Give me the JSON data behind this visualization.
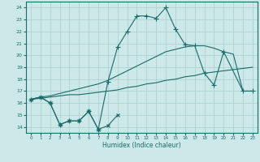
{
  "title": "",
  "xlabel": "Humidex (Indice chaleur)",
  "bg_color": "#cce8e8",
  "line_color": "#1a6b6b",
  "grid_color": "#aacece",
  "xlim": [
    -0.5,
    23.5
  ],
  "ylim": [
    13.5,
    24.5
  ],
  "yticks": [
    14,
    15,
    16,
    17,
    18,
    19,
    20,
    21,
    22,
    23,
    24
  ],
  "xticks": [
    0,
    1,
    2,
    3,
    4,
    5,
    6,
    7,
    8,
    9,
    10,
    11,
    12,
    13,
    14,
    15,
    16,
    17,
    18,
    19,
    20,
    21,
    22,
    23
  ],
  "series": [
    {
      "x": [
        0,
        1,
        2,
        3,
        4,
        5,
        6,
        7,
        8,
        9
      ],
      "y": [
        16.3,
        16.5,
        16.0,
        14.2,
        14.5,
        14.5,
        15.3,
        13.8,
        14.1,
        15.0
      ],
      "marker": "x",
      "markersize": 3,
      "linewidth": 0.8
    },
    {
      "x": [
        0,
        1,
        2,
        3,
        4,
        5,
        6,
        7,
        8,
        9,
        10,
        11,
        12,
        13,
        14,
        15,
        16,
        17,
        18,
        19,
        20,
        22,
        23
      ],
      "y": [
        16.3,
        16.5,
        16.0,
        14.2,
        14.5,
        14.5,
        15.3,
        13.8,
        17.8,
        20.7,
        22.0,
        23.3,
        23.3,
        23.1,
        24.0,
        22.2,
        20.9,
        20.8,
        18.5,
        17.5,
        20.3,
        17.0,
        17.0
      ],
      "marker": "+",
      "markersize": 4,
      "linewidth": 0.8
    },
    {
      "x": [
        0,
        1,
        2,
        3,
        4,
        5,
        6,
        7,
        8,
        9,
        10,
        11,
        12,
        13,
        14,
        15,
        16,
        17,
        18,
        19,
        20,
        21,
        22,
        23
      ],
      "y": [
        16.3,
        16.4,
        16.5,
        16.6,
        16.7,
        16.7,
        16.8,
        16.9,
        17.0,
        17.1,
        17.3,
        17.4,
        17.6,
        17.7,
        17.9,
        18.0,
        18.2,
        18.3,
        18.5,
        18.6,
        18.7,
        18.8,
        18.9,
        19.0
      ],
      "marker": null,
      "markersize": 0,
      "linewidth": 0.8
    },
    {
      "x": [
        0,
        1,
        2,
        3,
        4,
        5,
        6,
        7,
        8,
        9,
        10,
        11,
        12,
        13,
        14,
        15,
        16,
        17,
        18,
        19,
        20,
        21,
        22,
        23
      ],
      "y": [
        16.3,
        16.5,
        16.6,
        16.8,
        17.0,
        17.2,
        17.4,
        17.6,
        17.9,
        18.3,
        18.7,
        19.1,
        19.5,
        19.9,
        20.3,
        20.5,
        20.7,
        20.8,
        20.8,
        20.6,
        20.3,
        20.1,
        17.0,
        17.0
      ],
      "marker": null,
      "markersize": 0,
      "linewidth": 0.8
    }
  ]
}
